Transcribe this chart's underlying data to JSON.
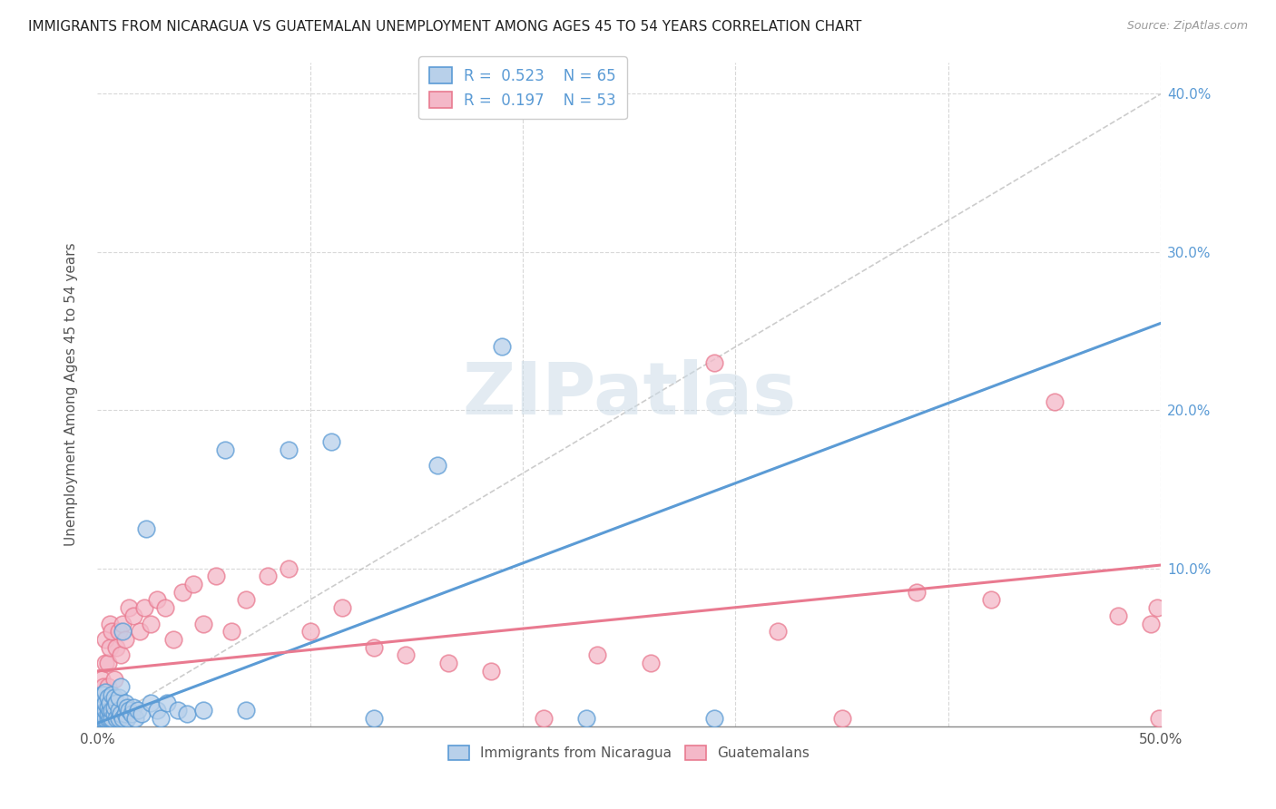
{
  "title": "IMMIGRANTS FROM NICARAGUA VS GUATEMALAN UNEMPLOYMENT AMONG AGES 45 TO 54 YEARS CORRELATION CHART",
  "source": "Source: ZipAtlas.com",
  "ylabel": "Unemployment Among Ages 45 to 54 years",
  "xlim": [
    0.0,
    0.5
  ],
  "ylim": [
    0.0,
    0.42
  ],
  "xticks": [
    0.0,
    0.1,
    0.2,
    0.3,
    0.4,
    0.5
  ],
  "yticks": [
    0.0,
    0.1,
    0.2,
    0.3,
    0.4
  ],
  "blue_R": "0.523",
  "blue_N": "65",
  "pink_R": "0.197",
  "pink_N": "53",
  "blue_color": "#b8d0ea",
  "blue_line_color": "#5b9bd5",
  "pink_color": "#f4b8c8",
  "pink_line_color": "#e97a90",
  "blue_scatter_x": [
    0.001,
    0.001,
    0.001,
    0.002,
    0.002,
    0.002,
    0.002,
    0.003,
    0.003,
    0.003,
    0.003,
    0.003,
    0.004,
    0.004,
    0.004,
    0.004,
    0.005,
    0.005,
    0.005,
    0.005,
    0.006,
    0.006,
    0.006,
    0.007,
    0.007,
    0.007,
    0.008,
    0.008,
    0.008,
    0.009,
    0.009,
    0.01,
    0.01,
    0.01,
    0.011,
    0.011,
    0.012,
    0.012,
    0.013,
    0.013,
    0.014,
    0.014,
    0.015,
    0.016,
    0.017,
    0.018,
    0.019,
    0.021,
    0.023,
    0.025,
    0.028,
    0.03,
    0.033,
    0.038,
    0.042,
    0.05,
    0.06,
    0.07,
    0.09,
    0.11,
    0.13,
    0.16,
    0.19,
    0.23,
    0.29
  ],
  "blue_scatter_y": [
    0.005,
    0.008,
    0.01,
    0.005,
    0.008,
    0.012,
    0.02,
    0.005,
    0.008,
    0.012,
    0.015,
    0.02,
    0.005,
    0.01,
    0.015,
    0.022,
    0.005,
    0.008,
    0.012,
    0.018,
    0.005,
    0.01,
    0.015,
    0.005,
    0.01,
    0.02,
    0.008,
    0.012,
    0.018,
    0.005,
    0.015,
    0.005,
    0.01,
    0.018,
    0.008,
    0.025,
    0.06,
    0.005,
    0.008,
    0.015,
    0.005,
    0.012,
    0.01,
    0.008,
    0.012,
    0.005,
    0.01,
    0.008,
    0.125,
    0.015,
    0.01,
    0.005,
    0.015,
    0.01,
    0.008,
    0.01,
    0.175,
    0.01,
    0.175,
    0.18,
    0.005,
    0.165,
    0.24,
    0.005,
    0.005
  ],
  "pink_scatter_x": [
    0.001,
    0.002,
    0.002,
    0.003,
    0.003,
    0.004,
    0.004,
    0.005,
    0.005,
    0.006,
    0.006,
    0.007,
    0.008,
    0.009,
    0.01,
    0.011,
    0.012,
    0.013,
    0.015,
    0.017,
    0.02,
    0.022,
    0.025,
    0.028,
    0.032,
    0.036,
    0.04,
    0.045,
    0.05,
    0.056,
    0.063,
    0.07,
    0.08,
    0.09,
    0.1,
    0.115,
    0.13,
    0.145,
    0.165,
    0.185,
    0.21,
    0.235,
    0.26,
    0.29,
    0.32,
    0.35,
    0.385,
    0.42,
    0.45,
    0.48,
    0.495,
    0.498,
    0.499
  ],
  "pink_scatter_y": [
    0.01,
    0.02,
    0.03,
    0.01,
    0.025,
    0.04,
    0.055,
    0.025,
    0.04,
    0.05,
    0.065,
    0.06,
    0.03,
    0.05,
    0.06,
    0.045,
    0.065,
    0.055,
    0.075,
    0.07,
    0.06,
    0.075,
    0.065,
    0.08,
    0.075,
    0.055,
    0.085,
    0.09,
    0.065,
    0.095,
    0.06,
    0.08,
    0.095,
    0.1,
    0.06,
    0.075,
    0.05,
    0.045,
    0.04,
    0.035,
    0.005,
    0.045,
    0.04,
    0.23,
    0.06,
    0.005,
    0.085,
    0.08,
    0.205,
    0.07,
    0.065,
    0.075,
    0.005
  ],
  "blue_trend_x": [
    0.0,
    0.5
  ],
  "blue_trend_y": [
    0.002,
    0.255
  ],
  "pink_trend_x": [
    0.0,
    0.5
  ],
  "pink_trend_y": [
    0.035,
    0.102
  ],
  "diag_line_x": [
    0.0,
    0.5
  ],
  "diag_line_y": [
    0.0,
    0.4
  ],
  "watermark_zip": "ZIP",
  "watermark_atlas": "atlas",
  "background_color": "#ffffff",
  "grid_color": "#d8d8d8"
}
